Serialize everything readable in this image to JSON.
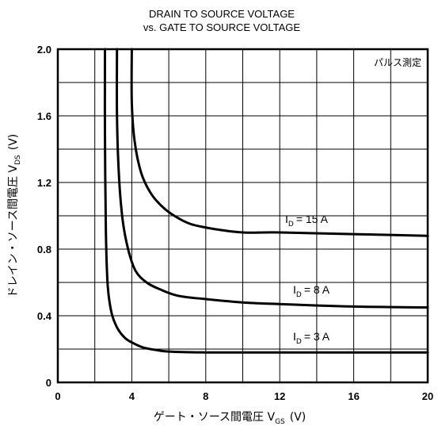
{
  "chart_data": {
    "type": "line",
    "title": "DRAIN TO SOURCE VOLTAGE",
    "subtitle": "vs. GATE TO SOURCE VOLTAGE",
    "xlabel": "ゲート・ソース間電圧 V",
    "xlabel_sub": "GS",
    "xlabel_unit": "(V)",
    "ylabel": "ドレイン・ソース間電圧 V",
    "ylabel_sub": "DS",
    "ylabel_unit": "(V)",
    "annotation": "パルス測定",
    "xlim": [
      0,
      20
    ],
    "ylim": [
      0,
      2.0
    ],
    "x_ticks": [
      "0",
      "4",
      "8",
      "12",
      "16",
      "20"
    ],
    "y_ticks": [
      "0",
      "0.4",
      "0.8",
      "1.2",
      "1.6",
      "2.0"
    ],
    "grid": true,
    "series": [
      {
        "name": "I_D = 3 A",
        "label_main": "I",
        "label_sub": "D",
        "label_rest": "= 3 A",
        "x": [
          2.55,
          2.55,
          2.6,
          2.7,
          2.9,
          3.2,
          3.6,
          4.0,
          4.6,
          5.3,
          6.0,
          8.0,
          12.0,
          16.0,
          20.0
        ],
        "y": [
          2.0,
          1.5,
          0.9,
          0.58,
          0.42,
          0.33,
          0.27,
          0.24,
          0.21,
          0.195,
          0.185,
          0.18,
          0.18,
          0.18,
          0.18
        ]
      },
      {
        "name": "I_D = 8 A",
        "label_main": "I",
        "label_sub": "D",
        "label_rest": "= 8 A",
        "x": [
          3.2,
          3.2,
          3.3,
          3.5,
          3.8,
          4.2,
          4.8,
          5.5,
          6.5,
          8.0,
          10.0,
          12.0,
          16.0,
          20.0
        ],
        "y": [
          2.0,
          1.6,
          1.25,
          0.98,
          0.8,
          0.67,
          0.6,
          0.56,
          0.52,
          0.5,
          0.48,
          0.47,
          0.455,
          0.45
        ]
      },
      {
        "name": "I_D = 15 A",
        "label_main": "I",
        "label_sub": "D",
        "label_rest": "= 15 A",
        "x": [
          4.0,
          4.0,
          4.15,
          4.5,
          5.0,
          5.6,
          6.3,
          7.2,
          8.5,
          10.0,
          12.0,
          16.0,
          20.0
        ],
        "y": [
          2.0,
          1.68,
          1.45,
          1.26,
          1.14,
          1.06,
          1.0,
          0.95,
          0.92,
          0.9,
          0.9,
          0.89,
          0.88
        ]
      }
    ]
  }
}
